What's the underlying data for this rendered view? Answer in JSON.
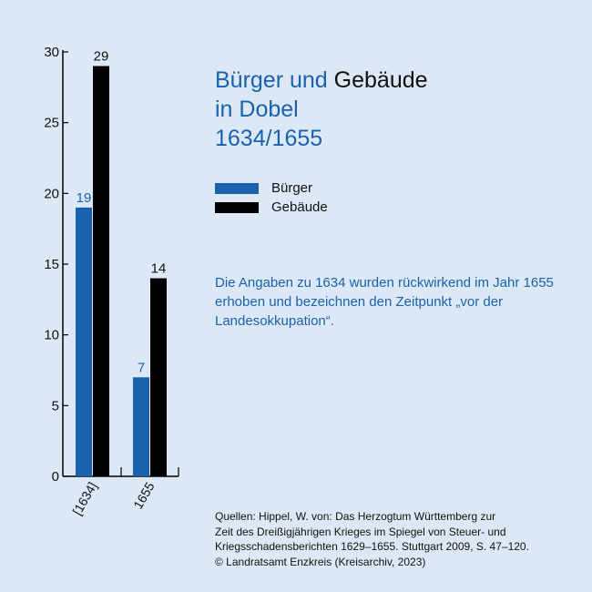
{
  "title": {
    "part1": "Bürger und",
    "part2": "Gebäude",
    "line2": "in Dobel",
    "line3": "1634/1655"
  },
  "legend": [
    {
      "label": "Bürger",
      "color": "#1a62ae"
    },
    {
      "label": "Gebäude",
      "color": "#000000"
    }
  ],
  "note": "Die Angaben zu 1634 wurden rückwirkend im Jahr 1655 erhoben und bezeichnen den Zeitpunkt „vor der Landesokkupation“.",
  "sources": [
    "Quellen: Hippel, W. von: Das Herzogtum Württemberg zur",
    "Zeit des Dreißigjährigen Krieges im Spiegel von Steuer- und",
    "Kriegsschadensberichten 1629–1655. Stuttgart 2009, S. 47–120.",
    "© Landratsamt Enzkreis (Kreisarchiv, 2023)"
  ],
  "chart_data": {
    "type": "bar",
    "categories": [
      "[1634]",
      "1655"
    ],
    "series": [
      {
        "name": "Bürger",
        "values": [
          19,
          7
        ],
        "color": "#1a62ae"
      },
      {
        "name": "Gebäude",
        "values": [
          29,
          14
        ],
        "color": "#000000"
      }
    ],
    "ylim": [
      0,
      30
    ],
    "yticks": [
      0,
      5,
      10,
      15,
      20,
      25,
      30
    ],
    "grid": false,
    "legend": "right"
  }
}
